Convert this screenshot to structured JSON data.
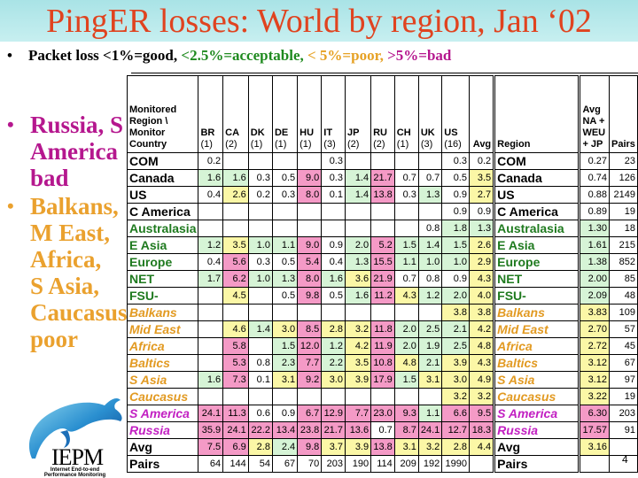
{
  "slide": {
    "title": "PingER losses: World by region, Jan ‘02",
    "legend_bullet": {
      "prefix": "Packet loss ",
      "good": "<1%=good,",
      "acceptable": " <2.5%=acceptable,",
      "poor": " < 5%=poor,",
      "bad": " >5%=bad"
    },
    "bullets": [
      {
        "lines": [
          "Russia, S",
          "America",
          "bad"
        ],
        "color": "#b5178e"
      },
      {
        "lines": [
          "Balkans,",
          "M East,",
          "Africa,",
          "S Asia,",
          "Caucasus",
          "poor"
        ],
        "color": "#eaa12e"
      }
    ],
    "logo": {
      "name": "IEPM",
      "subtitle_1": "Internet End-to-end",
      "subtitle_2": "Performance Monitoring"
    },
    "page_number": "4"
  },
  "legend_colors": {
    "good": "#ffffff",
    "acceptable": "#d6f4d6",
    "poor": "#fbf7a6",
    "bad": "#f49ac6"
  },
  "table": {
    "corner_header": [
      "Monitored",
      "Region \\",
      "Monitor",
      "Country"
    ],
    "monitor_columns": [
      {
        "code": "BR",
        "count": "(1)"
      },
      {
        "code": "CA",
        "count": "(2)"
      },
      {
        "code": "DK",
        "count": "(1)"
      },
      {
        "code": "DE",
        "count": "(1)"
      },
      {
        "code": "HU",
        "count": "(1)"
      },
      {
        "code": "IT",
        "count": "(3)"
      },
      {
        "code": "JP",
        "count": "(2)"
      },
      {
        "code": "RU",
        "count": "(2)"
      },
      {
        "code": "CH",
        "count": "(1)"
      },
      {
        "code": "UK",
        "count": "(3)"
      },
      {
        "code": "US",
        "count": "(16)"
      }
    ],
    "avg_header": "Avg",
    "region_header": "Region",
    "avg_na_header": [
      "Avg",
      "NA +",
      "WEU",
      "+ JP"
    ],
    "pairs_header": "Pairs",
    "rows": [
      {
        "region": "COM",
        "class": "black",
        "values": [
          "0.2",
          "",
          "",
          "",
          "",
          "0.3",
          "",
          "",
          "",
          "",
          "0.3"
        ],
        "bgs": [
          "w",
          "w",
          "w",
          "w",
          "w",
          "w",
          "w",
          "w",
          "w",
          "w",
          "w"
        ],
        "avg": "0.2",
        "avg_bg": "w",
        "avg_na": "0.27",
        "avg_na_bg": "w",
        "pairs": "23"
      },
      {
        "region": "Canada",
        "class": "black",
        "values": [
          "1.6",
          "1.6",
          "0.3",
          "0.5",
          "9.0",
          "0.3",
          "1.4",
          "21.7",
          "0.7",
          "0.7",
          "0.5"
        ],
        "bgs": [
          "g",
          "g",
          "w",
          "w",
          "p",
          "w",
          "g",
          "p",
          "w",
          "w",
          "w"
        ],
        "avg": "3.5",
        "avg_bg": "y",
        "avg_na": "0.74",
        "avg_na_bg": "w",
        "pairs": "126"
      },
      {
        "region": "US",
        "class": "black",
        "values": [
          "0.4",
          "2.6",
          "0.2",
          "0.3",
          "8.0",
          "0.1",
          "1.4",
          "13.8",
          "0.3",
          "1.3",
          "0.9"
        ],
        "bgs": [
          "w",
          "y",
          "w",
          "w",
          "p",
          "w",
          "g",
          "p",
          "w",
          "g",
          "w"
        ],
        "avg": "2.7",
        "avg_bg": "y",
        "avg_na": "0.88",
        "avg_na_bg": "w",
        "pairs": "2149"
      },
      {
        "region": "C America",
        "class": "black",
        "values": [
          "",
          "",
          "",
          "",
          "",
          "",
          "",
          "",
          "",
          "",
          "0.9"
        ],
        "bgs": [
          "w",
          "w",
          "w",
          "w",
          "w",
          "w",
          "w",
          "w",
          "w",
          "w",
          "w"
        ],
        "avg": "0.9",
        "avg_bg": "w",
        "avg_na": "0.89",
        "avg_na_bg": "w",
        "pairs": "19"
      },
      {
        "region": "Australasia",
        "class": "green",
        "values": [
          "",
          "",
          "",
          "",
          "",
          "",
          "",
          "",
          "",
          "0.8",
          "1.8"
        ],
        "bgs": [
          "w",
          "w",
          "w",
          "w",
          "w",
          "w",
          "w",
          "w",
          "w",
          "w",
          "g"
        ],
        "avg": "1.3",
        "avg_bg": "g",
        "avg_na": "1.30",
        "avg_na_bg": "g",
        "pairs": "18"
      },
      {
        "region": "E Asia",
        "class": "green",
        "values": [
          "1.2",
          "3.5",
          "1.0",
          "1.1",
          "9.0",
          "0.9",
          "2.0",
          "5.2",
          "1.5",
          "1.4",
          "1.5"
        ],
        "bgs": [
          "g",
          "y",
          "g",
          "g",
          "p",
          "w",
          "g",
          "p",
          "g",
          "g",
          "g"
        ],
        "avg": "2.6",
        "avg_bg": "y",
        "avg_na": "1.61",
        "avg_na_bg": "g",
        "pairs": "215"
      },
      {
        "region": "Europe",
        "class": "green",
        "values": [
          "0.4",
          "5.6",
          "0.3",
          "0.5",
          "5.4",
          "0.4",
          "1.3",
          "15.5",
          "1.1",
          "1.0",
          "1.0"
        ],
        "bgs": [
          "w",
          "p",
          "w",
          "w",
          "p",
          "w",
          "g",
          "p",
          "g",
          "g",
          "g"
        ],
        "avg": "2.9",
        "avg_bg": "y",
        "avg_na": "1.38",
        "avg_na_bg": "g",
        "pairs": "852"
      },
      {
        "region": "NET",
        "class": "green",
        "values": [
          "1.7",
          "6.2",
          "1.0",
          "1.3",
          "8.0",
          "1.6",
          "3.6",
          "21.9",
          "0.7",
          "0.8",
          "0.9"
        ],
        "bgs": [
          "g",
          "p",
          "g",
          "g",
          "p",
          "g",
          "y",
          "p",
          "w",
          "w",
          "w"
        ],
        "avg": "4.3",
        "avg_bg": "y",
        "avg_na": "2.00",
        "avg_na_bg": "g",
        "pairs": "85"
      },
      {
        "region": "FSU-",
        "class": "green",
        "values": [
          "",
          "4.5",
          "",
          "0.5",
          "9.8",
          "0.5",
          "1.6",
          "11.2",
          "4.3",
          "1.2",
          "2.0"
        ],
        "bgs": [
          "w",
          "y",
          "w",
          "w",
          "p",
          "w",
          "g",
          "p",
          "y",
          "g",
          "g"
        ],
        "avg": "4.0",
        "avg_bg": "y",
        "avg_na": "2.09",
        "avg_na_bg": "g",
        "pairs": "48"
      },
      {
        "region": "Balkans",
        "class": "orange",
        "values": [
          "",
          "",
          "",
          "",
          "",
          "",
          "",
          "",
          "",
          "",
          "3.8"
        ],
        "bgs": [
          "w",
          "w",
          "w",
          "w",
          "w",
          "w",
          "w",
          "w",
          "w",
          "w",
          "y"
        ],
        "avg": "3.8",
        "avg_bg": "y",
        "avg_na": "3.83",
        "avg_na_bg": "y",
        "pairs": "109"
      },
      {
        "region": "Mid East",
        "class": "orange",
        "values": [
          "",
          "4.6",
          "1.4",
          "3.0",
          "8.5",
          "2.8",
          "3.2",
          "11.8",
          "2.0",
          "2.5",
          "2.1"
        ],
        "bgs": [
          "w",
          "y",
          "g",
          "y",
          "p",
          "y",
          "y",
          "p",
          "g",
          "g",
          "g"
        ],
        "avg": "4.2",
        "avg_bg": "y",
        "avg_na": "2.70",
        "avg_na_bg": "y",
        "pairs": "57"
      },
      {
        "region": "Africa",
        "class": "orange",
        "values": [
          "",
          "5.8",
          "",
          "1.5",
          "12.0",
          "1.2",
          "4.2",
          "11.9",
          "2.0",
          "1.9",
          "2.5"
        ],
        "bgs": [
          "w",
          "p",
          "w",
          "g",
          "p",
          "g",
          "y",
          "p",
          "g",
          "g",
          "g"
        ],
        "avg": "4.8",
        "avg_bg": "y",
        "avg_na": "2.72",
        "avg_na_bg": "y",
        "pairs": "45"
      },
      {
        "region": "Baltics",
        "class": "orange",
        "values": [
          "",
          "5.3",
          "0.8",
          "2.3",
          "7.7",
          "2.2",
          "3.5",
          "10.8",
          "4.8",
          "2.1",
          "3.9"
        ],
        "bgs": [
          "w",
          "p",
          "w",
          "g",
          "p",
          "g",
          "y",
          "p",
          "y",
          "g",
          "y"
        ],
        "avg": "4.3",
        "avg_bg": "y",
        "avg_na": "3.12",
        "avg_na_bg": "y",
        "pairs": "67"
      },
      {
        "region": "S Asia",
        "class": "orange",
        "values": [
          "1.6",
          "7.3",
          "0.1",
          "3.1",
          "9.2",
          "3.0",
          "3.9",
          "17.9",
          "1.5",
          "3.1",
          "3.0"
        ],
        "bgs": [
          "g",
          "p",
          "w",
          "y",
          "p",
          "y",
          "y",
          "p",
          "g",
          "y",
          "y"
        ],
        "avg": "4.9",
        "avg_bg": "y",
        "avg_na": "3.12",
        "avg_na_bg": "y",
        "pairs": "97"
      },
      {
        "region": "Caucasus",
        "class": "orange",
        "values": [
          "",
          "",
          "",
          "",
          "",
          "",
          "",
          "",
          "",
          "",
          "3.2"
        ],
        "bgs": [
          "w",
          "w",
          "w",
          "w",
          "w",
          "w",
          "w",
          "w",
          "w",
          "w",
          "y"
        ],
        "avg": "3.2",
        "avg_bg": "y",
        "avg_na": "3.22",
        "avg_na_bg": "y",
        "pairs": "19"
      },
      {
        "region": "S America",
        "class": "purple",
        "values": [
          "24.1",
          "11.3",
          "0.6",
          "0.9",
          "6.7",
          "12.9",
          "7.7",
          "23.0",
          "9.3",
          "1.1",
          "6.6"
        ],
        "bgs": [
          "p",
          "p",
          "w",
          "w",
          "p",
          "p",
          "p",
          "p",
          "p",
          "g",
          "p"
        ],
        "avg": "9.5",
        "avg_bg": "p",
        "avg_na": "6.30",
        "avg_na_bg": "p",
        "pairs": "203"
      },
      {
        "region": "Russia",
        "class": "purple",
        "values": [
          "35.9",
          "24.1",
          "22.2",
          "13.4",
          "23.8",
          "21.7",
          "13.6",
          "0.7",
          "8.7",
          "24.1",
          "12.7"
        ],
        "bgs": [
          "p",
          "p",
          "p",
          "p",
          "p",
          "p",
          "p",
          "w",
          "p",
          "p",
          "p"
        ],
        "avg": "18.3",
        "avg_bg": "p",
        "avg_na": "17.57",
        "avg_na_bg": "p",
        "pairs": "91"
      },
      {
        "region": "Avg",
        "class": "black",
        "values": [
          "7.5",
          "6.9",
          "2.8",
          "2.4",
          "9.8",
          "3.7",
          "3.9",
          "13.8",
          "3.1",
          "3.2",
          "2.8"
        ],
        "bgs": [
          "p",
          "p",
          "y",
          "g",
          "p",
          "y",
          "y",
          "p",
          "y",
          "y",
          "y"
        ],
        "avg": "4.4",
        "avg_bg": "y",
        "avg_na": "3.16",
        "avg_na_bg": "y",
        "pairs": ""
      },
      {
        "region": "Pairs",
        "class": "black",
        "values": [
          "64",
          "144",
          "54",
          "67",
          "70",
          "203",
          "190",
          "114",
          "209",
          "192",
          "1990"
        ],
        "bgs": [
          "w",
          "w",
          "w",
          "w",
          "w",
          "w",
          "w",
          "w",
          "w",
          "w",
          "w"
        ],
        "avg": "",
        "avg_bg": "w",
        "avg_na": "",
        "avg_na_bg": "w",
        "pairs": ""
      }
    ]
  }
}
